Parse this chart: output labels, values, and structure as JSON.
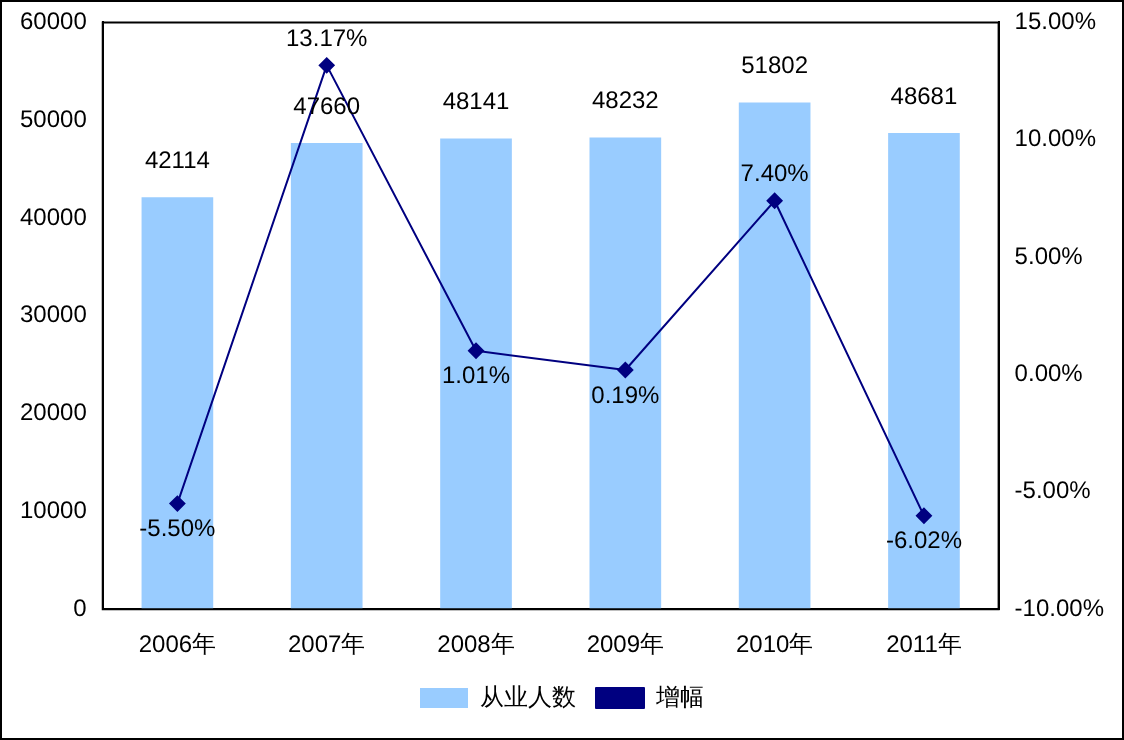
{
  "chart_data": {
    "type": "bar",
    "categories": [
      "2006年",
      "2007年",
      "2008年",
      "2009年",
      "2010年",
      "2011年"
    ],
    "series": [
      {
        "name": "从业人数",
        "color": "#99ccff",
        "values": [
          42114,
          47660,
          48141,
          48232,
          51802,
          48681
        ],
        "value_labels": [
          "42114",
          "47660",
          "48141",
          "48232",
          "51802",
          "48681"
        ]
      },
      {
        "name": "增幅",
        "type": "line",
        "axis": "y2",
        "color": "#000080",
        "values": [
          -5.5,
          13.17,
          1.01,
          0.19,
          7.4,
          -6.02
        ],
        "value_labels": [
          "-5.50%",
          "13.17%",
          "1.01%",
          "0.19%",
          "7.40%",
          "-6.02%"
        ]
      }
    ],
    "ylim": [
      0,
      60000
    ],
    "yticks": [
      0,
      10000,
      20000,
      30000,
      40000,
      50000,
      60000
    ],
    "y2lim": [
      -10,
      15
    ],
    "y2ticks": [
      {
        "value": -10,
        "label": "-10.00%"
      },
      {
        "value": -5,
        "label": "-5.00%"
      },
      {
        "value": 0,
        "label": "0.00%"
      },
      {
        "value": 5,
        "label": "5.00%"
      },
      {
        "value": 10,
        "label": "10.00%"
      },
      {
        "value": 15,
        "label": "15.00%"
      }
    ],
    "marker": "diamond",
    "legend": "bottom"
  }
}
